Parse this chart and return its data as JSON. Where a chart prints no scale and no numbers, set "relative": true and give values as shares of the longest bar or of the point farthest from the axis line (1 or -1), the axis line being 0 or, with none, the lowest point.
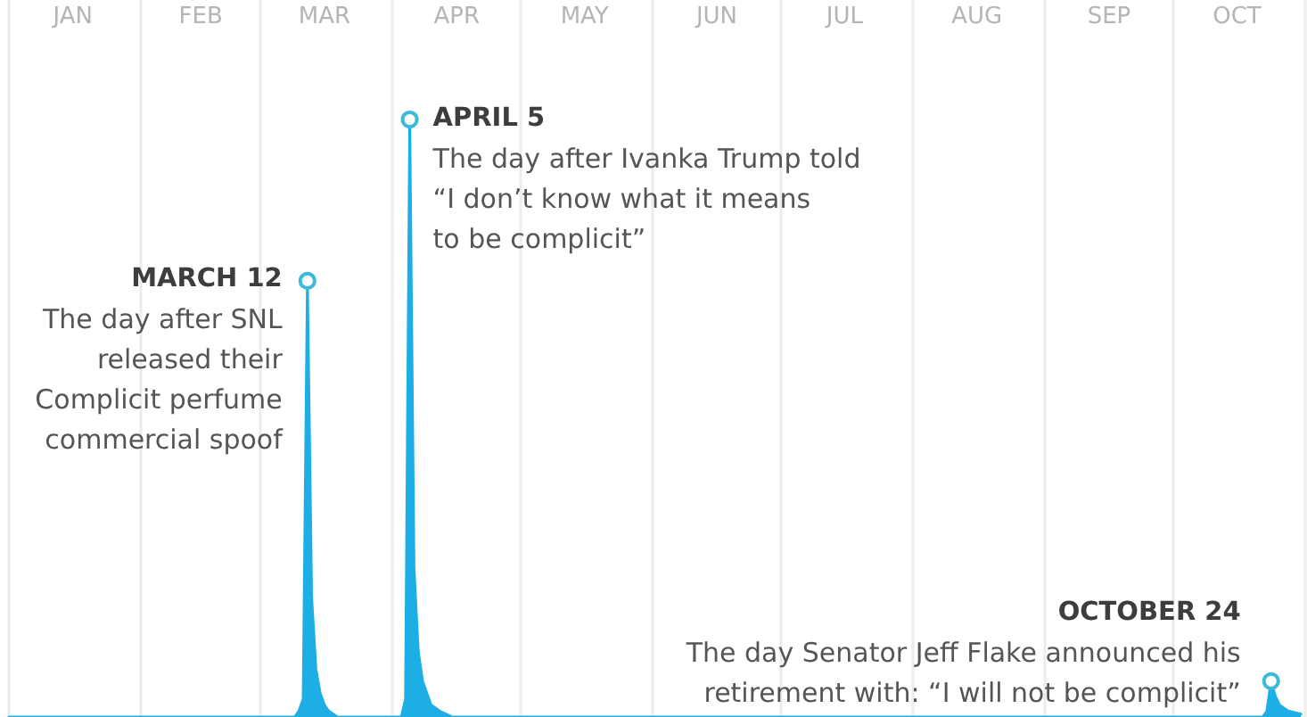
{
  "chart_data": {
    "type": "area",
    "relative": true,
    "xlim": [
      "--01-01",
      "--11-01"
    ],
    "xticks": [
      {
        "value": "--01-01",
        "label": null
      },
      {
        "value": "--01-16",
        "label": "JAN"
      },
      {
        "value": "--02-01",
        "label": null
      },
      {
        "value": "--02-15",
        "label": "FEB"
      },
      {
        "value": "--03-01",
        "label": null
      },
      {
        "value": "--03-16",
        "label": "MAR"
      },
      {
        "value": "--04-01",
        "label": null
      },
      {
        "value": "--04-16",
        "label": "APR"
      },
      {
        "value": "--05-01",
        "label": null
      },
      {
        "value": "--05-16",
        "label": "MAY"
      },
      {
        "value": "--06-01",
        "label": null
      },
      {
        "value": "--06-16",
        "label": "JUN"
      },
      {
        "value": "--07-01",
        "label": null
      },
      {
        "value": "--07-16",
        "label": "JUL"
      },
      {
        "value": "--08-01",
        "label": null
      },
      {
        "value": "--08-16",
        "label": "AUG"
      },
      {
        "value": "--09-01",
        "label": null
      },
      {
        "value": "--09-16",
        "label": "SEP"
      },
      {
        "value": "--10-01",
        "label": null
      },
      {
        "value": "--10-16",
        "label": "OCT"
      },
      {
        "value": "--11-01",
        "label": null
      }
    ],
    "grid": "x",
    "marker": "none",
    "series": [
      {
        "color": "#1eaee6",
        "x": [
          "--01-01",
          "--03-09",
          "--03-10",
          "--03-11",
          "--03-12",
          "--03-13",
          "--03-14",
          "--03-15",
          "--03-16",
          "--03-17",
          "--03-19",
          "--04-03",
          "--04-04",
          "--04-05",
          "--04-06",
          "--04-07",
          "--04-08",
          "--04-09",
          "--04-10",
          "--04-12",
          "--04-15",
          "--10-22",
          "--10-23",
          "--10-24",
          "--10-25",
          "--10-26",
          "--10-27",
          "--10-28",
          "--10-31"
        ],
        "values": [
          0,
          0,
          0.01,
          0.03,
          0.73,
          0.2,
          0.08,
          0.04,
          0.02,
          0.01,
          0,
          0,
          0.03,
          1,
          0.25,
          0.11,
          0.06,
          0.04,
          0.02,
          0.01,
          0,
          0,
          0.01,
          0.06,
          0.035,
          0.02,
          0.015,
          0.01,
          0.005
        ]
      }
    ],
    "annotations": [
      {
        "text": "MARCH 12\nThe day after SNL\nreleased their\nComplicit perfume\ncommercial spoof",
        "x": "--03-12",
        "y": 0.73
      },
      {
        "text": "APRIL 5\nThe day after Ivanka Trump told\n“I don’t know what it means\nto be complicit”",
        "x": "--04-05",
        "y": 1
      },
      {
        "text": "OCTOBER 24\nThe day Senator Jeff Flake announced his\nretirement with: “I will not be complicit”",
        "x": "--10-24",
        "y": 0.06
      }
    ]
  }
}
